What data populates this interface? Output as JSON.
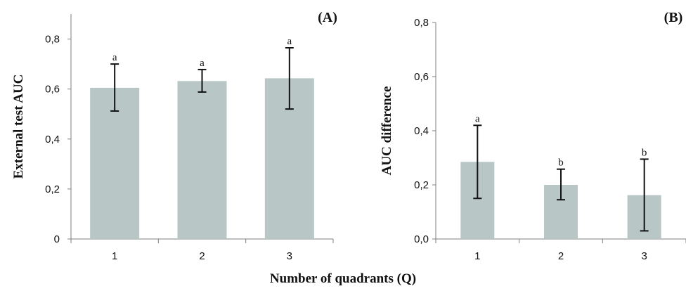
{
  "figure": {
    "shared_xlabel": "Number of quadrants (Q)",
    "bar_color": "#b8c7c6",
    "error_color": "#111111",
    "axis_color": "#7f7f7f"
  },
  "chart_data": [
    {
      "type": "bar",
      "panel_label": "(A)",
      "title": "",
      "xlabel": "Number of quadrants (Q)",
      "ylabel": "External test AUC",
      "categories": [
        "1",
        "2",
        "3"
      ],
      "values": [
        0.605,
        0.632,
        0.643
      ],
      "error_upper": [
        0.7,
        0.678,
        0.765
      ],
      "error_lower": [
        0.512,
        0.588,
        0.52
      ],
      "significance_letters": [
        "a",
        "a",
        "a"
      ],
      "ylim": [
        0,
        0.9
      ],
      "yticks": [
        0,
        0.2,
        0.4,
        0.6,
        0.8
      ],
      "ytick_labels": [
        "0",
        "0,2",
        "0,4",
        "0,6",
        "0,8"
      ],
      "grid": false,
      "legend": "none"
    },
    {
      "type": "bar",
      "panel_label": "(B)",
      "title": "",
      "xlabel": "Number of quadrants (Q)",
      "ylabel": "AUC difference",
      "categories": [
        "1",
        "2",
        "3"
      ],
      "values": [
        0.285,
        0.2,
        0.162
      ],
      "error_upper": [
        0.42,
        0.258,
        0.295
      ],
      "error_lower": [
        0.15,
        0.145,
        0.03
      ],
      "significance_letters": [
        "a",
        "b",
        "b"
      ],
      "ylim": [
        0,
        0.8
      ],
      "yticks": [
        0,
        0.2,
        0.4,
        0.6,
        0.8
      ],
      "ytick_labels": [
        "0,0",
        "0,2",
        "0,4",
        "0,6",
        "0,8"
      ],
      "grid": false,
      "legend": "none"
    }
  ]
}
